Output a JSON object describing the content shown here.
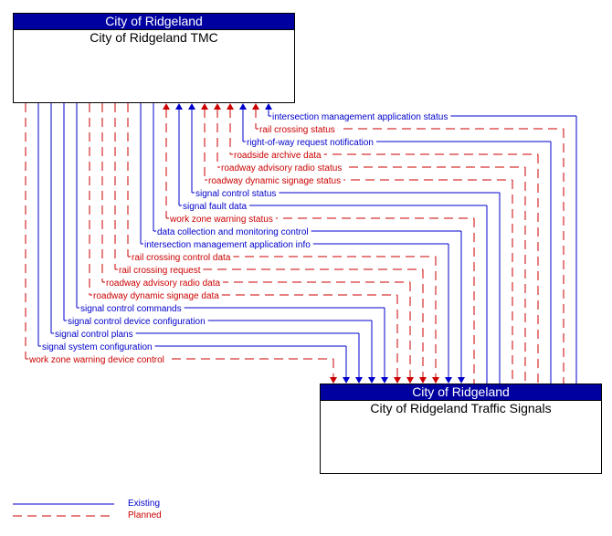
{
  "colors": {
    "existing": "#0000cc",
    "planned": "#cc0000",
    "header": "#0000a0"
  },
  "source": {
    "owner": "City of Ridgeland",
    "name": "City of Ridgeland TMC"
  },
  "target": {
    "owner": "City of Ridgeland",
    "name": "City of Ridgeland Traffic Signals"
  },
  "flows": [
    {
      "label": "intersection management application status",
      "status": "existing",
      "direction": "to-source"
    },
    {
      "label": "rail crossing status",
      "status": "planned",
      "direction": "to-source"
    },
    {
      "label": "right-of-way request notification",
      "status": "existing",
      "direction": "to-source"
    },
    {
      "label": "roadside archive data",
      "status": "planned",
      "direction": "to-source"
    },
    {
      "label": "roadway advisory radio status",
      "status": "planned",
      "direction": "to-source"
    },
    {
      "label": "roadway dynamic signage status",
      "status": "planned",
      "direction": "to-source"
    },
    {
      "label": "signal control status",
      "status": "existing",
      "direction": "to-source"
    },
    {
      "label": "signal fault data",
      "status": "existing",
      "direction": "to-source"
    },
    {
      "label": "work zone warning status",
      "status": "planned",
      "direction": "to-source"
    },
    {
      "label": "data collection and monitoring control",
      "status": "existing",
      "direction": "to-target"
    },
    {
      "label": "intersection management application info",
      "status": "existing",
      "direction": "to-target"
    },
    {
      "label": "rail crossing control data",
      "status": "planned",
      "direction": "to-target"
    },
    {
      "label": "rail crossing request",
      "status": "planned",
      "direction": "to-target"
    },
    {
      "label": "roadway advisory radio data",
      "status": "planned",
      "direction": "to-target"
    },
    {
      "label": "roadway dynamic signage data",
      "status": "planned",
      "direction": "to-target"
    },
    {
      "label": "signal control commands",
      "status": "existing",
      "direction": "to-target"
    },
    {
      "label": "signal control device configuration",
      "status": "existing",
      "direction": "to-target"
    },
    {
      "label": "signal control plans",
      "status": "existing",
      "direction": "to-target"
    },
    {
      "label": "signal system configuration",
      "status": "existing",
      "direction": "to-target"
    },
    {
      "label": "work zone warning device control",
      "status": "planned",
      "direction": "to-target"
    }
  ],
  "legend": {
    "existing": "Existing",
    "planned": "Planned"
  }
}
